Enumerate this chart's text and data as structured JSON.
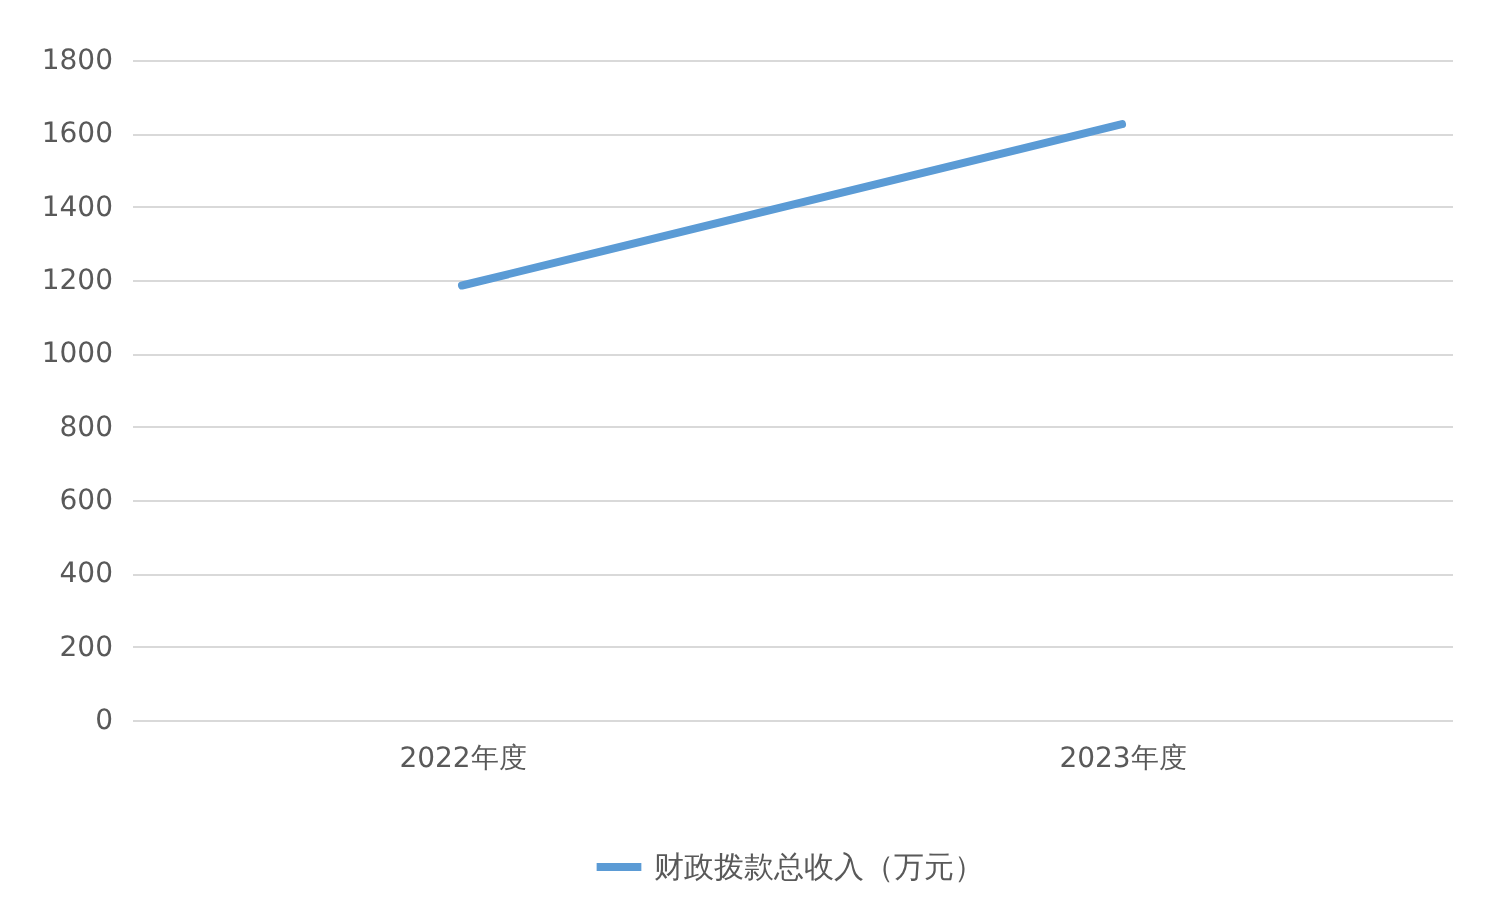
{
  "chart_data": {
    "type": "line",
    "categories": [
      "2022年度",
      "2023年度"
    ],
    "series": [
      {
        "name": "财政拨款总收入（万元）",
        "color": "#5b9bd5",
        "values": [
          1185,
          1625
        ]
      }
    ],
    "ylim": [
      0,
      1800
    ],
    "yticks": [
      0,
      200,
      400,
      600,
      800,
      1000,
      1200,
      1400,
      1600,
      1800
    ],
    "grid": "y",
    "legend": "bottom",
    "marker": "none"
  }
}
